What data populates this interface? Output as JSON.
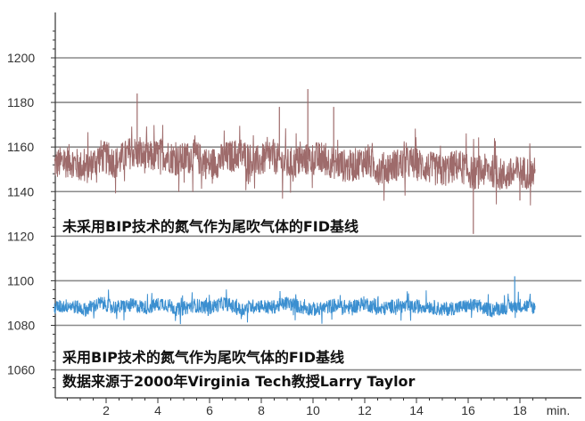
{
  "chart_data": {
    "type": "line",
    "title": "",
    "xlabel": "min.",
    "ylabel": "",
    "xlim": [
      0,
      19.2
    ],
    "ylim": [
      1050,
      1210
    ],
    "x_ticks": [
      2,
      4,
      6,
      8,
      10,
      12,
      14,
      16,
      18
    ],
    "y_ticks": [
      1060,
      1080,
      1100,
      1120,
      1140,
      1160,
      1180,
      1200
    ],
    "grid": true,
    "series": [
      {
        "color": "#9e6b6b",
        "x": [
          0.0,
          0.6,
          1.2,
          1.8,
          2.4,
          3.0,
          3.6,
          4.2,
          4.8,
          5.4,
          6.0,
          6.6,
          7.2,
          7.8,
          8.4,
          9.0,
          9.6,
          10.2,
          10.8,
          11.4,
          12.0,
          12.6,
          13.2,
          13.8,
          14.4,
          15.0,
          15.6,
          16.2,
          16.8,
          17.4,
          18.0,
          18.6
        ],
        "values": [
          1152,
          1154,
          1150,
          1156,
          1153,
          1158,
          1155,
          1157,
          1154,
          1156,
          1152,
          1155,
          1157,
          1153,
          1156,
          1152,
          1154,
          1155,
          1153,
          1151,
          1154,
          1150,
          1152,
          1153,
          1151,
          1149,
          1152,
          1148,
          1150,
          1147,
          1149,
          1148
        ],
        "spikes": [
          {
            "x": 3.2,
            "value": 1184
          },
          {
            "x": 9.8,
            "value": 1186
          },
          {
            "x": 8.7,
            "value": 1178
          },
          {
            "x": 16.2,
            "value": 1121
          },
          {
            "x": 18.0,
            "value": 1136
          },
          {
            "x": 10.8,
            "value": 1178
          }
        ]
      },
      {
        "color": "#3b8fd0",
        "x": [
          0.0,
          0.6,
          1.2,
          1.8,
          2.4,
          3.0,
          3.6,
          4.2,
          4.8,
          5.4,
          6.0,
          6.6,
          7.2,
          7.8,
          8.4,
          9.0,
          9.6,
          10.2,
          10.8,
          11.4,
          12.0,
          12.6,
          13.2,
          13.8,
          14.4,
          15.0,
          15.6,
          16.2,
          16.8,
          17.4,
          18.0,
          18.6
        ],
        "values": [
          1088,
          1089,
          1087,
          1090,
          1088,
          1089,
          1088,
          1090,
          1087,
          1089,
          1088,
          1090,
          1087,
          1089,
          1088,
          1090,
          1088,
          1087,
          1089,
          1088,
          1090,
          1087,
          1089,
          1088,
          1089,
          1087,
          1088,
          1089,
          1087,
          1088,
          1089,
          1088
        ],
        "spikes": [
          {
            "x": 17.8,
            "value": 1102
          }
        ]
      }
    ],
    "annotations": {
      "upper": "未采用BIP技术的氮气作为尾吹气体的FID基线",
      "lower_line1": "采用BIP技术的氮气作为尾吹气体的FID基线",
      "lower_line2": "数据来源于2000年Virginia Tech教授Larry Taylor"
    }
  }
}
